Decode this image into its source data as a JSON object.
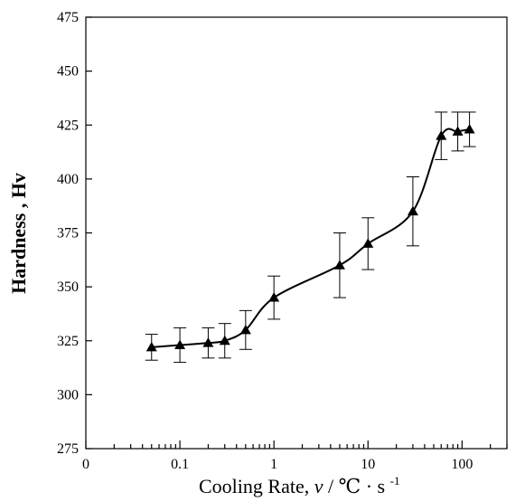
{
  "chart_data": {
    "type": "line",
    "xlabel": "Cooling Rate, ",
    "xlabel_symbol": "ν",
    "xlabel_unit": "/ ℃ · s",
    "xlabel_exp": "-1",
    "ylabel": "Hardness , Hv",
    "x_scale": "log",
    "xlim": [
      0.01,
      300
    ],
    "ylim": [
      275,
      475
    ],
    "x_ticks": [
      {
        "value": 0.01,
        "label": "0"
      },
      {
        "value": 0.1,
        "label": "0.1"
      },
      {
        "value": 1,
        "label": "1"
      },
      {
        "value": 10,
        "label": "10"
      },
      {
        "value": 100,
        "label": "100"
      }
    ],
    "y_ticks": [
      275,
      300,
      325,
      350,
      375,
      400,
      425,
      450,
      475
    ],
    "grid": false,
    "marker": "triangle",
    "series": [
      {
        "points": [
          {
            "x": 0.05,
            "y": 322,
            "err": 6
          },
          {
            "x": 0.1,
            "y": 323,
            "err": 8
          },
          {
            "x": 0.2,
            "y": 324,
            "err": 7
          },
          {
            "x": 0.3,
            "y": 325,
            "err": 8
          },
          {
            "x": 0.5,
            "y": 330,
            "err": 9
          },
          {
            "x": 1,
            "y": 345,
            "err": 10
          },
          {
            "x": 5,
            "y": 360,
            "err": 15
          },
          {
            "x": 10,
            "y": 370,
            "err": 12
          },
          {
            "x": 30,
            "y": 385,
            "err": 16
          },
          {
            "x": 60,
            "y": 420,
            "err": 11
          },
          {
            "x": 90,
            "y": 422,
            "err": 9
          },
          {
            "x": 120,
            "y": 423,
            "err": 8
          }
        ]
      }
    ]
  }
}
